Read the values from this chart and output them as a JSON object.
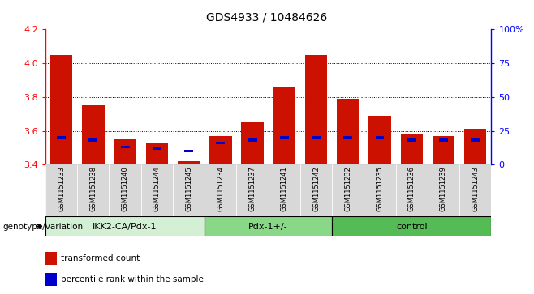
{
  "title": "GDS4933 / 10484626",
  "samples": [
    "GSM1151233",
    "GSM1151238",
    "GSM1151240",
    "GSM1151244",
    "GSM1151245",
    "GSM1151234",
    "GSM1151237",
    "GSM1151241",
    "GSM1151242",
    "GSM1151232",
    "GSM1151235",
    "GSM1151236",
    "GSM1151239",
    "GSM1151243"
  ],
  "transformed_count": [
    4.05,
    3.75,
    3.55,
    3.53,
    3.42,
    3.57,
    3.65,
    3.86,
    4.05,
    3.79,
    3.69,
    3.58,
    3.57,
    3.61
  ],
  "percentile_rank": [
    20,
    18,
    13,
    12,
    10,
    16,
    18,
    20,
    20,
    20,
    20,
    18,
    18,
    18
  ],
  "baseline": 3.4,
  "ylim_left": [
    3.4,
    4.2
  ],
  "ylim_right": [
    0,
    100
  ],
  "right_ticks": [
    0,
    25,
    50,
    75,
    100
  ],
  "right_tick_labels": [
    "0",
    "25",
    "50",
    "75",
    "100%"
  ],
  "left_ticks": [
    3.4,
    3.6,
    3.8,
    4.0,
    4.2
  ],
  "left_tick_labels": [
    "3.4",
    "3.6",
    "3.8",
    "4.0",
    "4.2"
  ],
  "groups": [
    {
      "label": "IKK2-CA/Pdx-1",
      "start": 0,
      "end": 5,
      "color": "#d4f0d4"
    },
    {
      "label": "Pdx-1+/-",
      "start": 5,
      "end": 9,
      "color": "#88d888"
    },
    {
      "label": "control",
      "start": 9,
      "end": 14,
      "color": "#55bb55"
    }
  ],
  "bar_color": "#cc1100",
  "percentile_color": "#0000cc",
  "bg_color": "#ffffff",
  "genotype_label": "genotype/variation",
  "legend_items": [
    {
      "label": "transformed count",
      "color": "#cc1100"
    },
    {
      "label": "percentile rank within the sample",
      "color": "#0000cc"
    }
  ]
}
